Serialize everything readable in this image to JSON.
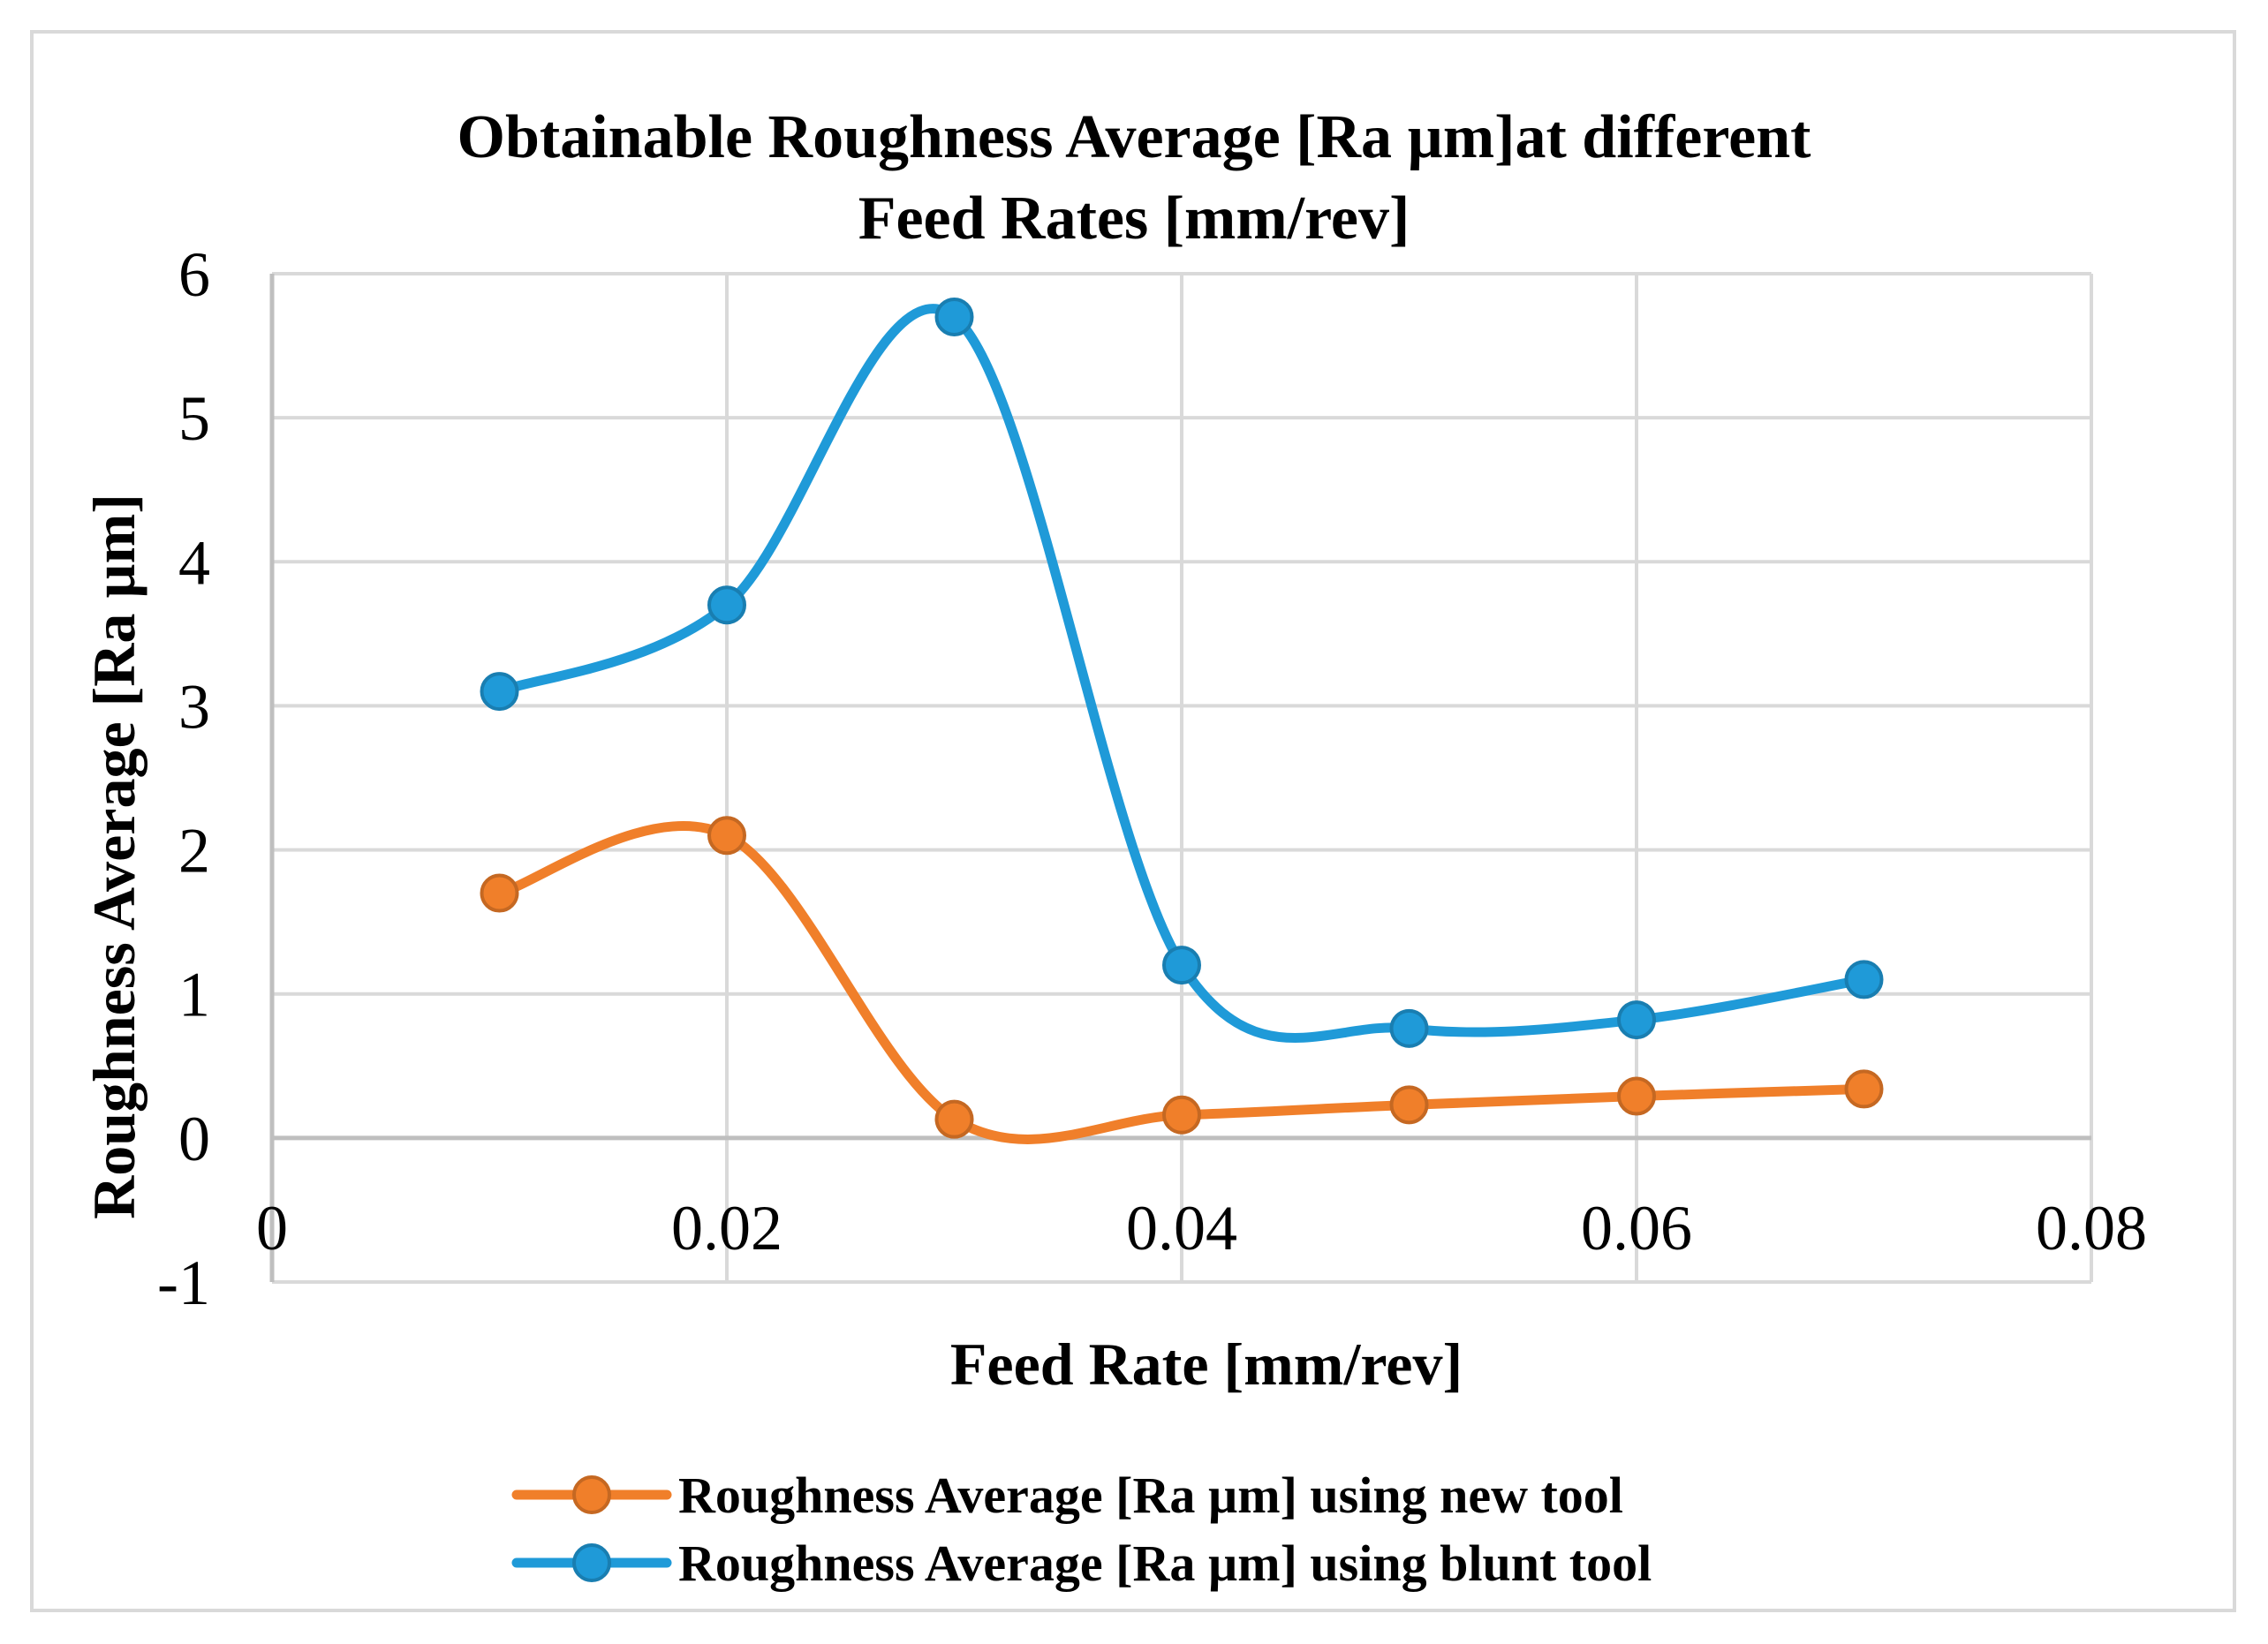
{
  "chart_data": {
    "type": "line",
    "title_lines": [
      "Obtainable Roughness Average [Ra µm]at different",
      "Feed Rates [mm/rev]"
    ],
    "xlabel": "Feed Rate [mm/rev]",
    "ylabel": "Roughness Average [Ra µm]",
    "xlim": [
      0,
      0.08
    ],
    "ylim": [
      -1,
      6
    ],
    "x_ticks": [
      0,
      0.02,
      0.04,
      0.06,
      0.08
    ],
    "x_tick_labels": [
      "0",
      "0.02",
      "0.04",
      "0.06",
      "0.08"
    ],
    "y_ticks": [
      -1,
      0,
      1,
      2,
      3,
      4,
      5,
      6
    ],
    "y_tick_labels": [
      "-1",
      "0",
      "1",
      "2",
      "3",
      "4",
      "5",
      "6"
    ],
    "grid": true,
    "smooth": true,
    "legend_position": "bottom",
    "series": [
      {
        "name": "Roughness Average [Ra µm] using new tool",
        "color": "#f07f2a",
        "x": [
          0.01,
          0.02,
          0.03,
          0.04,
          0.05,
          0.06,
          0.07
        ],
        "y": [
          1.7,
          2.1,
          0.13,
          0.16,
          0.23,
          0.29,
          0.34
        ]
      },
      {
        "name": "Roughness Average [Ra µm] using blunt tool",
        "color": "#1f9ad8",
        "x": [
          0.01,
          0.02,
          0.03,
          0.04,
          0.05,
          0.06,
          0.07
        ],
        "y": [
          3.1,
          3.7,
          5.7,
          1.2,
          0.76,
          0.82,
          1.1
        ]
      }
    ]
  },
  "colors": {
    "grid": "#d9d9d9",
    "zero_line": "#bfbfbf",
    "axis": "#bfbfbf"
  }
}
